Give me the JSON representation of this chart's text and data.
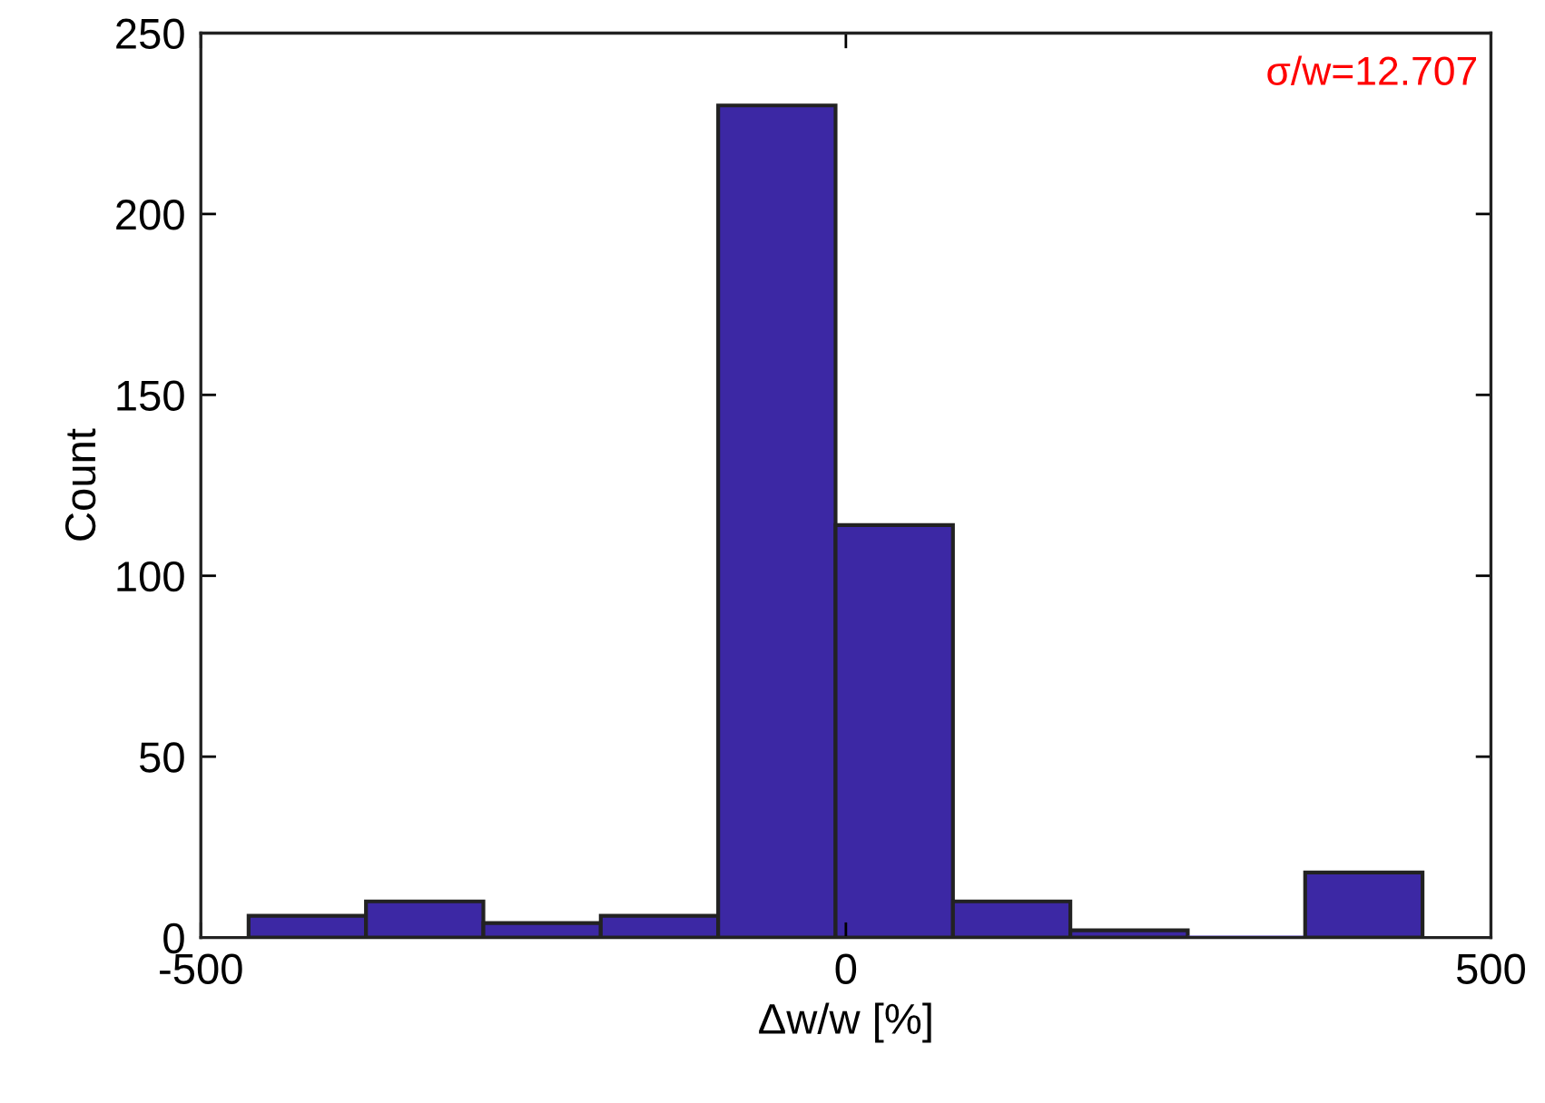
{
  "chart_data": {
    "type": "histogram",
    "bins": [
      -463,
      -372,
      -281,
      -190,
      -99,
      -8,
      83,
      174,
      265,
      356,
      447
    ],
    "values": [
      6,
      10,
      4,
      6,
      230,
      114,
      10,
      2,
      0,
      18
    ],
    "color": "#3c28a4",
    "xlabel": "Δw/w [%]",
    "ylabel": "Count",
    "xlim": [
      -500,
      500
    ],
    "xticks": [
      -500,
      0,
      500
    ],
    "ylim": [
      0,
      250
    ],
    "yticks": [
      0,
      50,
      100,
      150,
      200,
      250
    ],
    "annotations": [
      "σ/w=12.707"
    ],
    "grid": false,
    "legend": false
  }
}
